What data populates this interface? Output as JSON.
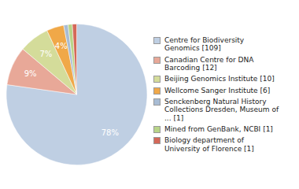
{
  "chart_data": {
    "type": "pie",
    "categories": [
      "Centre for Biodiversity\nGenomics [109]",
      "Canadian Centre for DNA\nBarcoding [12]",
      "Beijing Genomics Institute [10]",
      "Wellcome Sanger Institute [6]",
      "Senckenberg Natural History\nCollections Dresden, Museum of\n... [1]",
      "Mined from GenBank, NCBI [1]",
      "Biology department of\nUniversity of Florence [1]"
    ],
    "values": [
      78,
      9,
      7,
      4,
      1,
      1,
      1
    ],
    "value_labels": [
      "78%",
      "9%",
      "7%",
      "4%",
      null,
      null,
      null
    ],
    "colors": [
      "#bfcfe3",
      "#e8a898",
      "#d4dc9a",
      "#f0a848",
      "#a8bcd4",
      "#b8d488",
      "#d46858"
    ],
    "data_labels": true,
    "legend": "right"
  }
}
